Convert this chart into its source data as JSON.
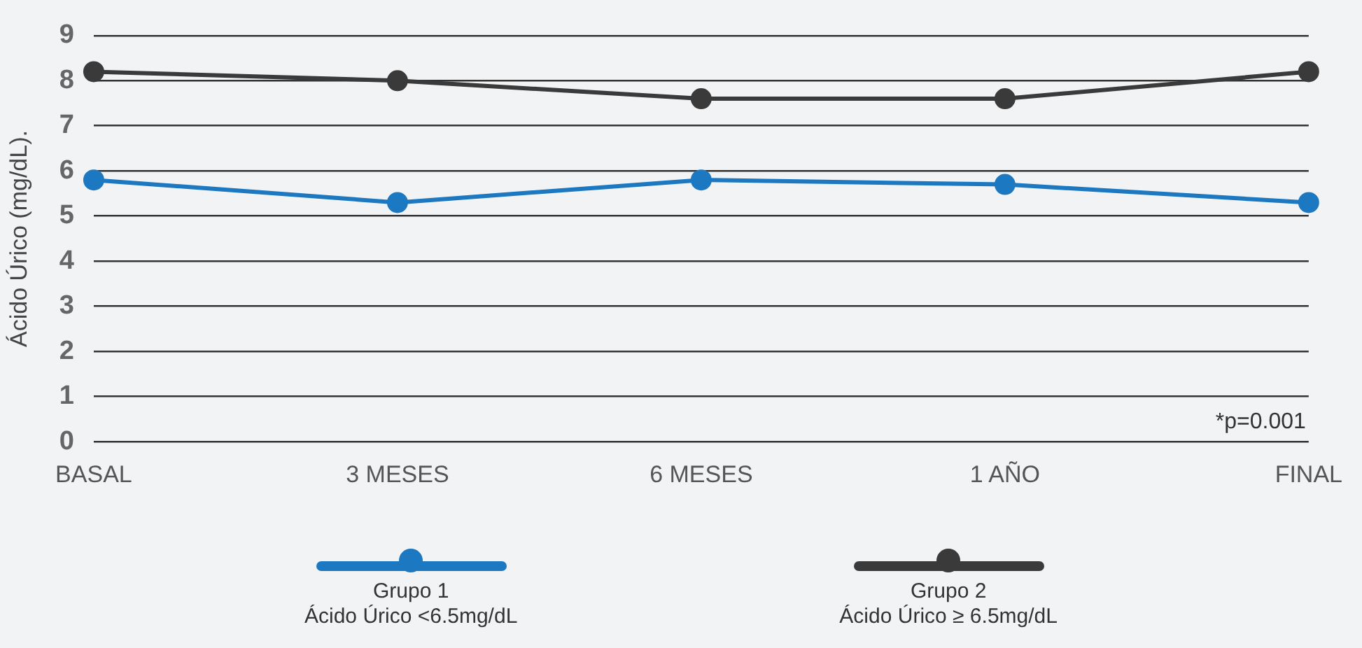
{
  "chart_data": {
    "type": "line",
    "ylabel": "Ácido Úrico (mg/dL).",
    "categories": [
      "BASAL",
      "3 MESES",
      "6 MESES",
      "1 AÑO",
      "FINAL"
    ],
    "series": [
      {
        "name": "Grupo 1\nÁcido Úrico <6.5mg/dL",
        "color": "#1c78c0",
        "values": [
          5.8,
          5.3,
          5.8,
          5.7,
          5.3
        ]
      },
      {
        "name": "Grupo 2\nÁcido Úrico ≥ 6.5mg/dL",
        "color": "#3a3a3a",
        "values": [
          8.2,
          8.0,
          7.6,
          7.6,
          8.2
        ]
      }
    ],
    "ylim": [
      0,
      9
    ],
    "yticks": [
      0,
      1,
      2,
      3,
      4,
      5,
      6,
      7,
      8,
      9
    ],
    "grid": "y",
    "legend": "bottom",
    "marker": "circle",
    "line_style": "solid",
    "annotations": [
      "*p=0.001"
    ]
  }
}
